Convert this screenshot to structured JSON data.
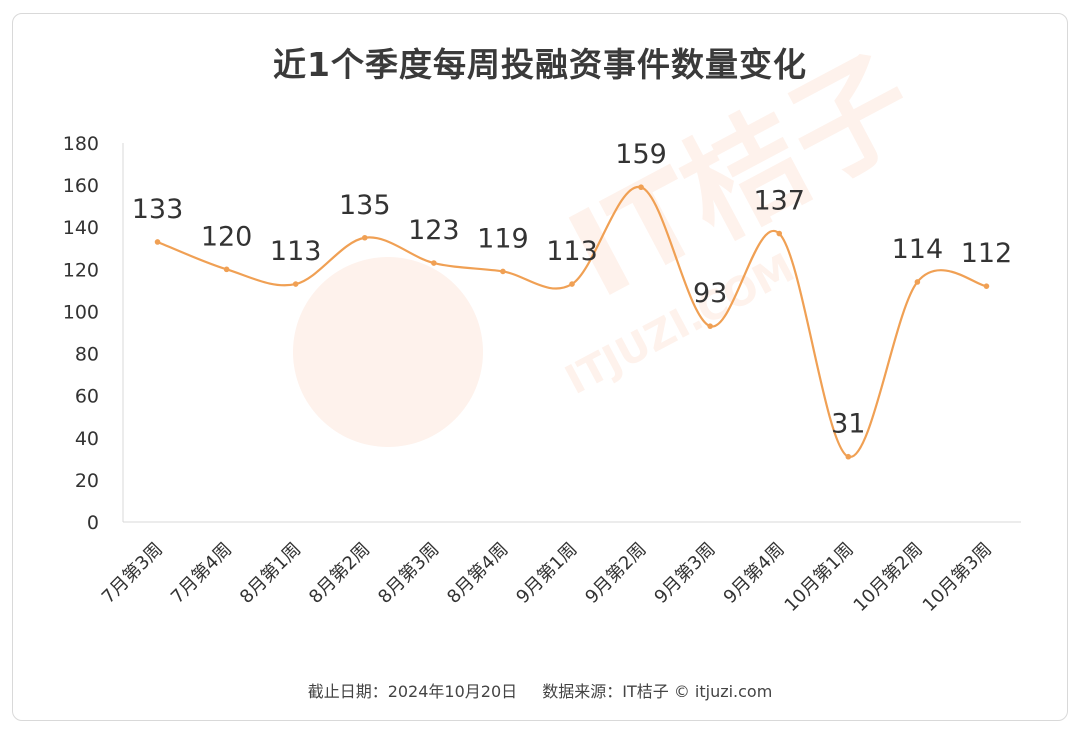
{
  "chart_data": {
    "type": "line",
    "title": "近1个季度每周投融资事件数量变化",
    "categories": [
      "7月第3周",
      "7月第4周",
      "8月第1周",
      "8月第2周",
      "8月第3周",
      "8月第4周",
      "9月第1周",
      "9月第2周",
      "9月第3周",
      "9月第4周",
      "10月第1周",
      "10月第2周",
      "10月第3周"
    ],
    "series": [
      {
        "values": [
          133,
          120,
          113,
          135,
          123,
          119,
          113,
          159,
          93,
          137,
          31,
          114,
          112
        ]
      }
    ],
    "ylim": [
      0,
      180
    ],
    "yticks": [
      0,
      20,
      40,
      60,
      80,
      100,
      120,
      140,
      160,
      180
    ],
    "xlabel": "",
    "ylabel": "",
    "smooth": true,
    "grid": false,
    "line_color": "#f0a054"
  },
  "footer": {
    "date": "截止日期：2024年10月20日",
    "source": "数据来源：IT桔子 © itjuzi.com"
  },
  "watermark": {
    "brand": "IT桔子",
    "url": "ITJUZI.COM"
  }
}
